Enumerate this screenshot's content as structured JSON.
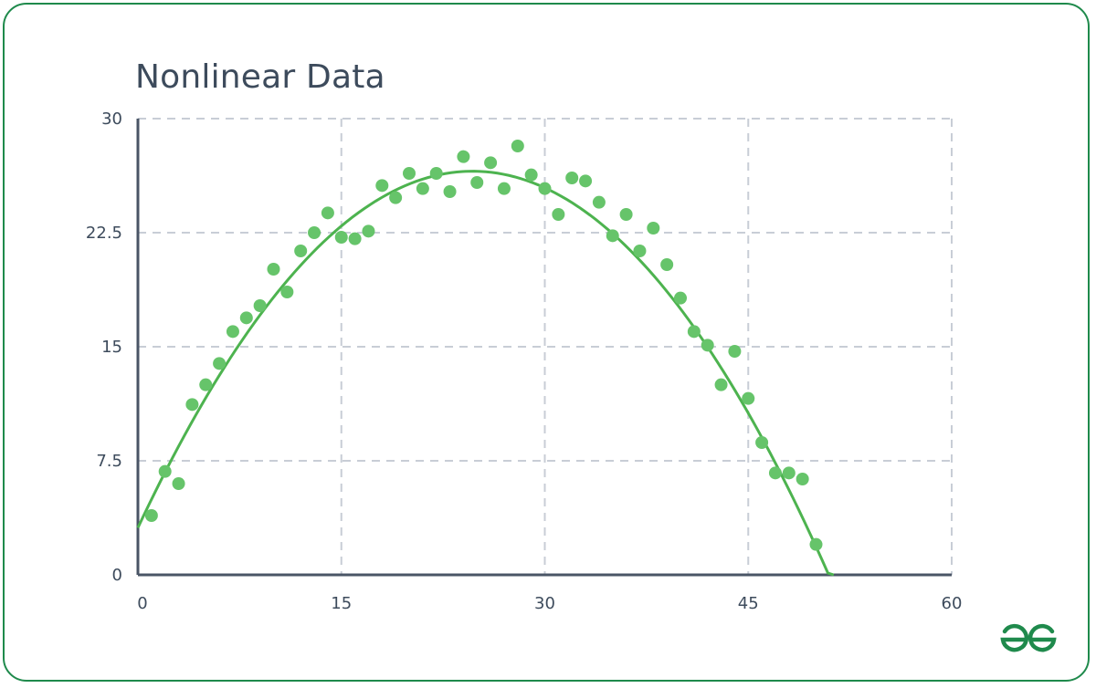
{
  "chart_data": {
    "type": "scatter",
    "title": "Nonlinear Data",
    "xlabel": "",
    "ylabel": "",
    "xlim": [
      0,
      60
    ],
    "ylim": [
      0,
      30
    ],
    "x_ticks": [
      "0",
      "15",
      "30",
      "45",
      "60"
    ],
    "y_ticks": [
      "0",
      "7.5",
      "15",
      "22.5",
      "30"
    ],
    "grid": true,
    "colors": {
      "points": "#66c46a",
      "fit": "#4db34f",
      "grid": "#c8cdd6",
      "axis": "#4a5566"
    },
    "points": [
      [
        1,
        3.9
      ],
      [
        2,
        6.8
      ],
      [
        3,
        6.0
      ],
      [
        4,
        11.2
      ],
      [
        5,
        12.5
      ],
      [
        6,
        13.9
      ],
      [
        7,
        16.0
      ],
      [
        8,
        16.9
      ],
      [
        9,
        17.7
      ],
      [
        10,
        20.1
      ],
      [
        11,
        18.6
      ],
      [
        12,
        21.3
      ],
      [
        13,
        22.5
      ],
      [
        14,
        23.8
      ],
      [
        15,
        22.2
      ],
      [
        16,
        22.1
      ],
      [
        17,
        22.6
      ],
      [
        18,
        25.6
      ],
      [
        19,
        24.8
      ],
      [
        20,
        26.4
      ],
      [
        21,
        25.4
      ],
      [
        22,
        26.4
      ],
      [
        23,
        25.2
      ],
      [
        24,
        27.5
      ],
      [
        25,
        25.8
      ],
      [
        26,
        27.1
      ],
      [
        27,
        25.4
      ],
      [
        28,
        28.2
      ],
      [
        29,
        26.3
      ],
      [
        30,
        25.4
      ],
      [
        31,
        23.7
      ],
      [
        32,
        26.1
      ],
      [
        33,
        25.9
      ],
      [
        34,
        24.5
      ],
      [
        35,
        22.3
      ],
      [
        36,
        23.7
      ],
      [
        37,
        21.3
      ],
      [
        38,
        22.8
      ],
      [
        39,
        20.4
      ],
      [
        40,
        18.2
      ],
      [
        41,
        16.0
      ],
      [
        42,
        15.1
      ],
      [
        43,
        12.5
      ],
      [
        44,
        14.7
      ],
      [
        45,
        11.6
      ],
      [
        46,
        8.7
      ],
      [
        47,
        6.7
      ],
      [
        48,
        6.7
      ],
      [
        49,
        6.3
      ],
      [
        50,
        2.0
      ]
    ],
    "fit": {
      "type": "quadratic",
      "coefficients": [
        3.1,
        1.9,
        -0.0385
      ],
      "x_range": [
        0,
        51.3
      ]
    }
  },
  "brand": {
    "name": "GeeksforGeeks",
    "icon": "gfg-logo-icon",
    "color": "#1f8a4c"
  }
}
